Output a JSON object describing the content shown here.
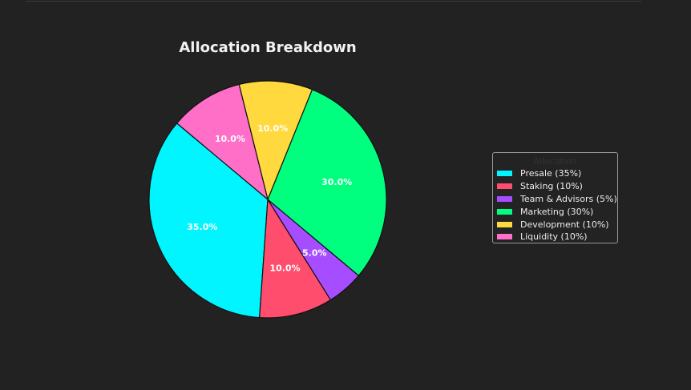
{
  "chart_data": {
    "type": "pie",
    "title": "Allocation Breakdown",
    "slices": [
      {
        "label": "Presale (35%)",
        "value": 35,
        "pct_label": "35.0%",
        "color": "#00F5FF"
      },
      {
        "label": "Staking (10%)",
        "value": 10,
        "pct_label": "10.0%",
        "color": "#FF4D6D"
      },
      {
        "label": "Team & Advisors (5%)",
        "value": 5,
        "pct_label": "5.0%",
        "color": "#A64DFF"
      },
      {
        "label": "Marketing (30%)",
        "value": 30,
        "pct_label": "30.0%",
        "color": "#00FF7F"
      },
      {
        "label": "Development (10%)",
        "value": 10,
        "pct_label": "10.0%",
        "color": "#FFD93D"
      },
      {
        "label": "Liquidity (10%)",
        "value": 10,
        "pct_label": "10.0%",
        "color": "#FF6EC7"
      }
    ],
    "legend": {
      "title": "Allocation",
      "placement": "right"
    }
  }
}
